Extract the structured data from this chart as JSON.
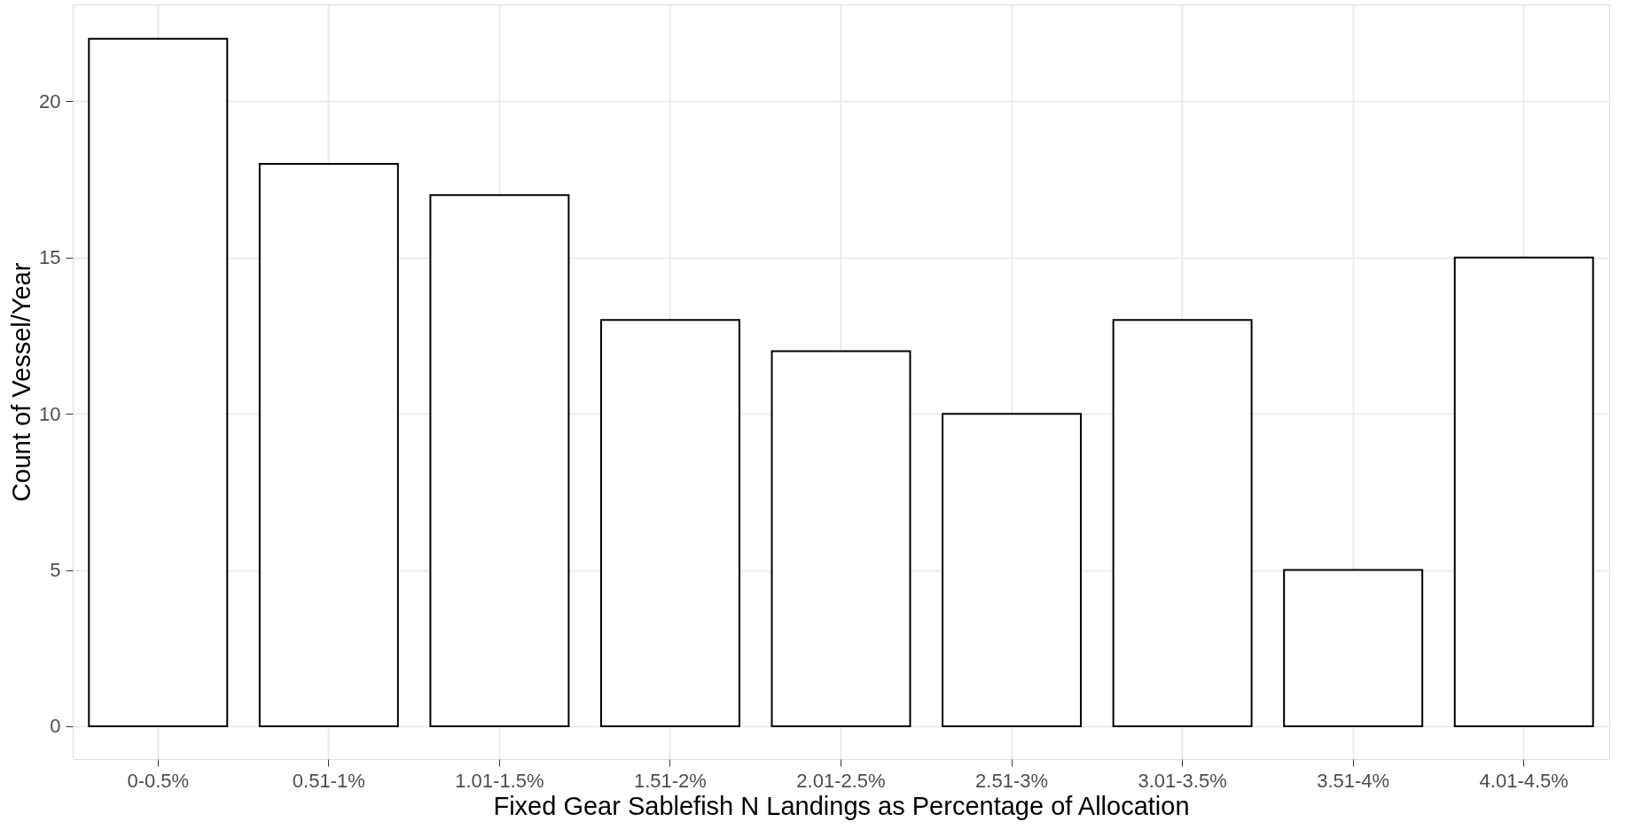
{
  "chart_data": {
    "type": "bar",
    "xlabel": "Fixed Gear Sablefish N Landings as Percentage of Allocation",
    "ylabel": "Count of Vessel/Year",
    "categories": [
      "0-0.5%",
      "0.51-1%",
      "1.01-1.5%",
      "1.51-2%",
      "2.01-2.5%",
      "2.51-3%",
      "3.01-3.5%",
      "3.51-4%",
      "4.01-4.5%"
    ],
    "values": [
      22,
      18,
      17,
      13,
      12,
      10,
      13,
      5,
      15
    ],
    "color": "#ffffff",
    "ylim": [
      -1.05,
      23.1
    ],
    "yticks": [
      0,
      5,
      10,
      15,
      20
    ],
    "grid": true
  }
}
